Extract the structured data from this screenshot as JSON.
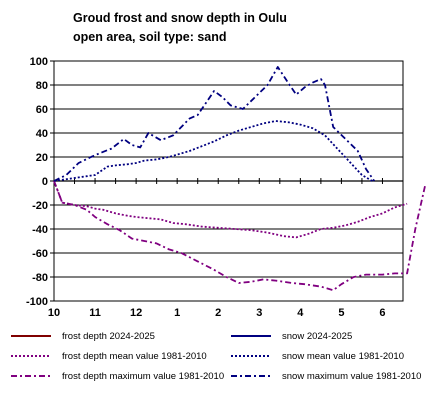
{
  "chart_data": {
    "type": "line",
    "title": "Groud frost and snow depth in Oulu",
    "subtitle": "open area, soil type: sand",
    "xlabel": "",
    "ylabel": "",
    "x_ticks": [
      "10",
      "11",
      "12",
      "1",
      "2",
      "3",
      "4",
      "5",
      "6"
    ],
    "y_ticks": [
      100,
      80,
      60,
      40,
      20,
      0,
      -20,
      -40,
      -60,
      -80,
      -100
    ],
    "ylim": [
      -100,
      100
    ],
    "grid": true,
    "legend_position": "bottom",
    "series": [
      {
        "name": "frost depth 2024-2025",
        "color": "#800000",
        "style": "solid",
        "points": []
      },
      {
        "name": "snow 2024-2025",
        "color": "#000080",
        "style": "solid",
        "points": []
      },
      {
        "name": "frost depth mean value 1981-2010",
        "color": "#800080",
        "style": "dotted",
        "points": [
          [
            10.0,
            0
          ],
          [
            10.2,
            -18
          ],
          [
            10.5,
            -20
          ],
          [
            10.8,
            -21
          ],
          [
            11.0,
            -23
          ],
          [
            11.2,
            -24
          ],
          [
            11.5,
            -27
          ],
          [
            11.8,
            -29
          ],
          [
            12.0,
            -30
          ],
          [
            12.3,
            -31
          ],
          [
            12.6,
            -32
          ],
          [
            12.9,
            -35
          ],
          [
            13.2,
            -36
          ],
          [
            13.6,
            -38
          ],
          [
            14.0,
            -39
          ],
          [
            14.4,
            -40
          ],
          [
            14.8,
            -41
          ],
          [
            15.2,
            -43
          ],
          [
            15.6,
            -46
          ],
          [
            15.9,
            -47
          ],
          [
            16.2,
            -44
          ],
          [
            16.5,
            -40
          ],
          [
            16.8,
            -39
          ],
          [
            17.1,
            -37
          ],
          [
            17.4,
            -34
          ],
          [
            17.7,
            -30
          ],
          [
            18.0,
            -27
          ],
          [
            18.3,
            -22
          ],
          [
            18.6,
            -19
          ]
        ]
      },
      {
        "name": "snow mean value 1981-2010",
        "color": "#000080",
        "style": "dotted",
        "points": [
          [
            10.0,
            0
          ],
          [
            10.4,
            2
          ],
          [
            10.8,
            4
          ],
          [
            11.0,
            5
          ],
          [
            11.3,
            12
          ],
          [
            11.5,
            13
          ],
          [
            11.8,
            14
          ],
          [
            12.0,
            15
          ],
          [
            12.2,
            17
          ],
          [
            12.5,
            18
          ],
          [
            12.8,
            20
          ],
          [
            13.0,
            22
          ],
          [
            13.3,
            25
          ],
          [
            13.6,
            29
          ],
          [
            13.9,
            33
          ],
          [
            14.2,
            38
          ],
          [
            14.5,
            42
          ],
          [
            14.8,
            45
          ],
          [
            15.1,
            48
          ],
          [
            15.4,
            50
          ],
          [
            15.7,
            49
          ],
          [
            16.0,
            47
          ],
          [
            16.3,
            44
          ],
          [
            16.6,
            38
          ],
          [
            16.9,
            27
          ],
          [
            17.2,
            16
          ],
          [
            17.5,
            5
          ],
          [
            17.75,
            0
          ]
        ]
      },
      {
        "name": "frost depth maximum value 1981-2010",
        "color": "#800080",
        "style": "dashdot",
        "points": [
          [
            10.0,
            0
          ],
          [
            10.2,
            -18
          ],
          [
            10.5,
            -20
          ],
          [
            10.8,
            -24
          ],
          [
            11.0,
            -30
          ],
          [
            11.3,
            -36
          ],
          [
            11.6,
            -41
          ],
          [
            11.9,
            -48
          ],
          [
            12.2,
            -50
          ],
          [
            12.5,
            -52
          ],
          [
            12.8,
            -57
          ],
          [
            13.1,
            -60
          ],
          [
            13.5,
            -67
          ],
          [
            13.9,
            -74
          ],
          [
            14.2,
            -80
          ],
          [
            14.5,
            -85
          ],
          [
            14.8,
            -84
          ],
          [
            15.1,
            -82
          ],
          [
            15.4,
            -83
          ],
          [
            15.8,
            -85
          ],
          [
            16.1,
            -86
          ],
          [
            16.5,
            -88
          ],
          [
            16.8,
            -91
          ],
          [
            17.0,
            -86
          ],
          [
            17.3,
            -80
          ],
          [
            17.6,
            -78
          ],
          [
            18.0,
            -78
          ],
          [
            18.3,
            -77
          ],
          [
            18.6,
            -77
          ],
          [
            18.8,
            -40
          ],
          [
            19.05,
            -2
          ]
        ]
      },
      {
        "name": "snow maximum value 1981-2010",
        "color": "#000080",
        "style": "dashdot",
        "points": [
          [
            10.0,
            0
          ],
          [
            10.3,
            5
          ],
          [
            10.6,
            15
          ],
          [
            10.9,
            20
          ],
          [
            11.1,
            23
          ],
          [
            11.4,
            27
          ],
          [
            11.7,
            35
          ],
          [
            11.9,
            30
          ],
          [
            12.1,
            28
          ],
          [
            12.3,
            40
          ],
          [
            12.6,
            34
          ],
          [
            12.9,
            38
          ],
          [
            13.1,
            45
          ],
          [
            13.3,
            52
          ],
          [
            13.5,
            55
          ],
          [
            13.7,
            65
          ],
          [
            13.9,
            75
          ],
          [
            14.1,
            70
          ],
          [
            14.3,
            63
          ],
          [
            14.6,
            60
          ],
          [
            14.9,
            70
          ],
          [
            15.2,
            80
          ],
          [
            15.45,
            95
          ],
          [
            15.7,
            82
          ],
          [
            15.9,
            72
          ],
          [
            16.1,
            78
          ],
          [
            16.3,
            82
          ],
          [
            16.5,
            85
          ],
          [
            16.6,
            80
          ],
          [
            16.8,
            45
          ],
          [
            17.1,
            35
          ],
          [
            17.4,
            25
          ],
          [
            17.6,
            10
          ],
          [
            17.8,
            0
          ]
        ]
      }
    ]
  }
}
